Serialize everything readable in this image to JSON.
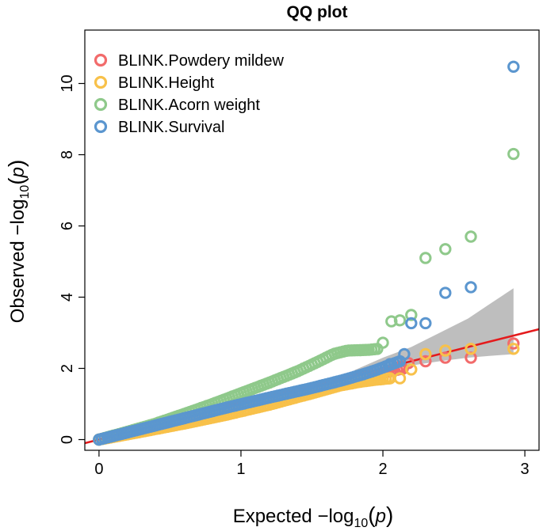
{
  "chart_data": {
    "type": "scatter",
    "title": "QQ plot",
    "xlabel": {
      "prefix": "Expected  −log",
      "sub": "10",
      "paren_open": "(",
      "var": "p",
      "paren_close": ")"
    },
    "ylabel": {
      "prefix": "Observed  −log",
      "sub": "10",
      "paren_open": "(",
      "var": "p",
      "paren_close": ")"
    },
    "xlim": [
      -0.1,
      3.1
    ],
    "ylim": [
      -0.3,
      11.5
    ],
    "x_ticks": [
      {
        "v": 0,
        "label": "0"
      },
      {
        "v": 1,
        "label": "1"
      },
      {
        "v": 2,
        "label": "2"
      },
      {
        "v": 3,
        "label": "3"
      }
    ],
    "y_ticks": [
      {
        "v": 0,
        "label": "0"
      },
      {
        "v": 2,
        "label": "2"
      },
      {
        "v": 4,
        "label": "4"
      },
      {
        "v": 6,
        "label": "6"
      },
      {
        "v": 8,
        "label": "8"
      },
      {
        "v": 10,
        "label": "10"
      }
    ],
    "legend_position": "top-left",
    "reference_line": {
      "slope": 1,
      "intercept": 0,
      "color": "#e41a1c"
    },
    "confidence_band": {
      "color": "#bebebe",
      "upper": [
        [
          1.8,
          1.95
        ],
        [
          2.0,
          2.3
        ],
        [
          2.2,
          2.6
        ],
        [
          2.4,
          3.0
        ],
        [
          2.6,
          3.4
        ],
        [
          2.75,
          3.8
        ],
        [
          2.92,
          4.25
        ]
      ],
      "lower": [
        [
          2.92,
          2.4
        ],
        [
          2.75,
          2.35
        ],
        [
          2.6,
          2.3
        ],
        [
          2.4,
          2.2
        ],
        [
          2.2,
          2.08
        ],
        [
          2.0,
          1.95
        ],
        [
          1.8,
          1.78
        ]
      ]
    },
    "series": [
      {
        "name": "BLINK.Powdery mildew",
        "color": "#f26b6b",
        "curve": [
          [
            0,
            0
          ],
          [
            0.3,
            0.27
          ],
          [
            0.6,
            0.52
          ],
          [
            0.9,
            0.82
          ],
          [
            1.2,
            1.1
          ],
          [
            1.5,
            1.38
          ],
          [
            1.7,
            1.58
          ],
          [
            1.85,
            1.72
          ],
          [
            1.95,
            1.82
          ],
          [
            2.05,
            1.92
          ],
          [
            2.15,
            2.0
          ]
        ],
        "points": [
          [
            2.12,
            2.05
          ],
          [
            2.18,
            2.15
          ],
          [
            2.3,
            2.2
          ],
          [
            2.44,
            2.3
          ],
          [
            2.62,
            2.3
          ],
          [
            2.92,
            2.7
          ]
        ]
      },
      {
        "name": "BLINK.Height",
        "color": "#f8c14a",
        "curve": [
          [
            0,
            0
          ],
          [
            0.3,
            0.22
          ],
          [
            0.6,
            0.45
          ],
          [
            0.9,
            0.7
          ],
          [
            1.2,
            0.98
          ],
          [
            1.5,
            1.3
          ],
          [
            1.7,
            1.52
          ],
          [
            1.85,
            1.63
          ],
          [
            1.95,
            1.68
          ],
          [
            2.05,
            1.72
          ]
        ],
        "points": [
          [
            2.05,
            1.72
          ],
          [
            2.12,
            1.72
          ],
          [
            2.2,
            1.97
          ],
          [
            2.3,
            2.4
          ],
          [
            2.44,
            2.5
          ],
          [
            2.62,
            2.55
          ],
          [
            2.92,
            2.55
          ]
        ]
      },
      {
        "name": "BLINK.Acorn weight",
        "color": "#8fc98b",
        "curve": [
          [
            0,
            0
          ],
          [
            0.2,
            0.22
          ],
          [
            0.4,
            0.45
          ],
          [
            0.6,
            0.72
          ],
          [
            0.8,
            1.0
          ],
          [
            1.0,
            1.3
          ],
          [
            1.2,
            1.6
          ],
          [
            1.4,
            1.92
          ],
          [
            1.55,
            2.2
          ],
          [
            1.65,
            2.4
          ],
          [
            1.75,
            2.5
          ],
          [
            1.9,
            2.52
          ],
          [
            1.97,
            2.55
          ]
        ],
        "points": [
          [
            2.0,
            2.72
          ],
          [
            2.06,
            3.32
          ],
          [
            2.12,
            3.35
          ],
          [
            2.2,
            3.5
          ],
          [
            2.3,
            5.1
          ],
          [
            2.44,
            5.35
          ],
          [
            2.62,
            5.7
          ],
          [
            2.92,
            8.02
          ]
        ]
      },
      {
        "name": "BLINK.Survival",
        "color": "#5b96cf",
        "curve": [
          [
            0,
            0
          ],
          [
            0.3,
            0.3
          ],
          [
            0.6,
            0.6
          ],
          [
            0.9,
            0.9
          ],
          [
            1.2,
            1.18
          ],
          [
            1.5,
            1.45
          ],
          [
            1.7,
            1.65
          ],
          [
            1.85,
            1.82
          ],
          [
            1.95,
            1.95
          ],
          [
            2.05,
            2.1
          ],
          [
            2.12,
            2.2
          ]
        ],
        "points": [
          [
            2.05,
            2.12
          ],
          [
            2.12,
            2.2
          ],
          [
            2.15,
            2.4
          ],
          [
            2.2,
            3.27
          ],
          [
            2.3,
            3.27
          ],
          [
            2.44,
            4.12
          ],
          [
            2.62,
            4.28
          ],
          [
            2.92,
            10.47
          ]
        ]
      }
    ]
  }
}
